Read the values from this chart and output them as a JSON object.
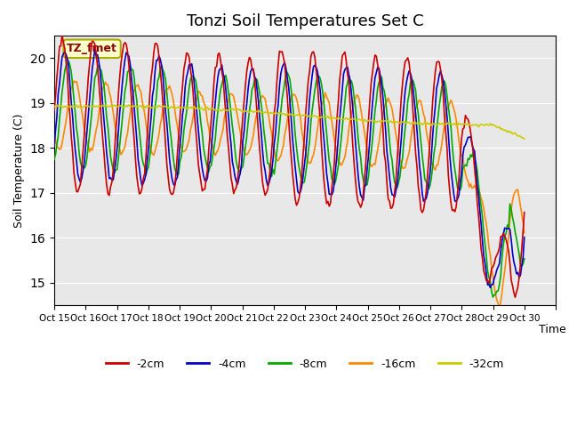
{
  "title": "Tonzi Soil Temperatures Set C",
  "xlabel": "Time",
  "ylabel": "Soil Temperature (C)",
  "ylim": [
    14.5,
    20.5
  ],
  "annotation": "TZ_fmet",
  "tick_labels": [
    "Oct 15",
    "Oct 16",
    "Oct 17",
    "Oct 18",
    "Oct 19",
    "Oct 20",
    "Oct 21",
    "Oct 22",
    "Oct 23",
    "Oct 24",
    "Oct 25",
    "Oct 26",
    "Oct 27",
    "Oct 28",
    "Oct 29",
    "Oct 30",
    ""
  ],
  "series_colors": {
    "-2cm": "#cc0000",
    "-4cm": "#0000cc",
    "-8cm": "#00aa00",
    "-16cm": "#ff8800",
    "-32cm": "#cccc00"
  },
  "series_lw": {
    "-2cm": 1.2,
    "-4cm": 1.2,
    "-8cm": 1.2,
    "-16cm": 1.2,
    "-32cm": 1.2
  },
  "bg_color": "#e8e8e8",
  "title_fontsize": 13,
  "legend_labels": [
    "-2cm",
    "-4cm",
    "-8cm",
    "-16cm",
    "-32cm"
  ],
  "legend_colors": [
    "#cc0000",
    "#0000cc",
    "#00aa00",
    "#ff8800",
    "#cccc00"
  ],
  "n_days": 15,
  "pts_per_day": 24
}
